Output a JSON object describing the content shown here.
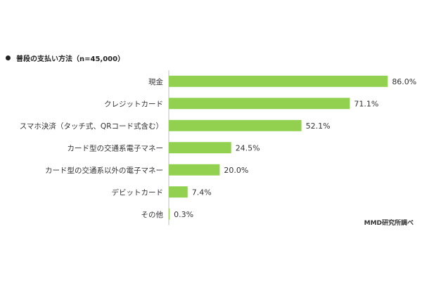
{
  "chart_data": {
    "type": "bar",
    "orientation": "horizontal",
    "title": "普段の支払い方法（n=45,000）",
    "source_note": "MMD研究所調べ",
    "categories": [
      "現金",
      "クレジットカード",
      "スマホ決済（タッチ式、QRコード式含む）",
      "カード型の交通系電子マネー",
      "カード型の交通系以外の電子マネー",
      "デビットカード",
      "その他"
    ],
    "values": [
      86.0,
      71.1,
      52.1,
      24.5,
      20.0,
      7.4,
      0.3
    ],
    "value_labels": [
      "86.0%",
      "71.1%",
      "52.1%",
      "24.5%",
      "20.0%",
      "7.4%",
      "0.3%"
    ],
    "unit": "%",
    "xlim": [
      0,
      100
    ],
    "grid": false,
    "legend": "none",
    "bar_color": "#92d050",
    "axis_color": "#bfbfbf"
  }
}
